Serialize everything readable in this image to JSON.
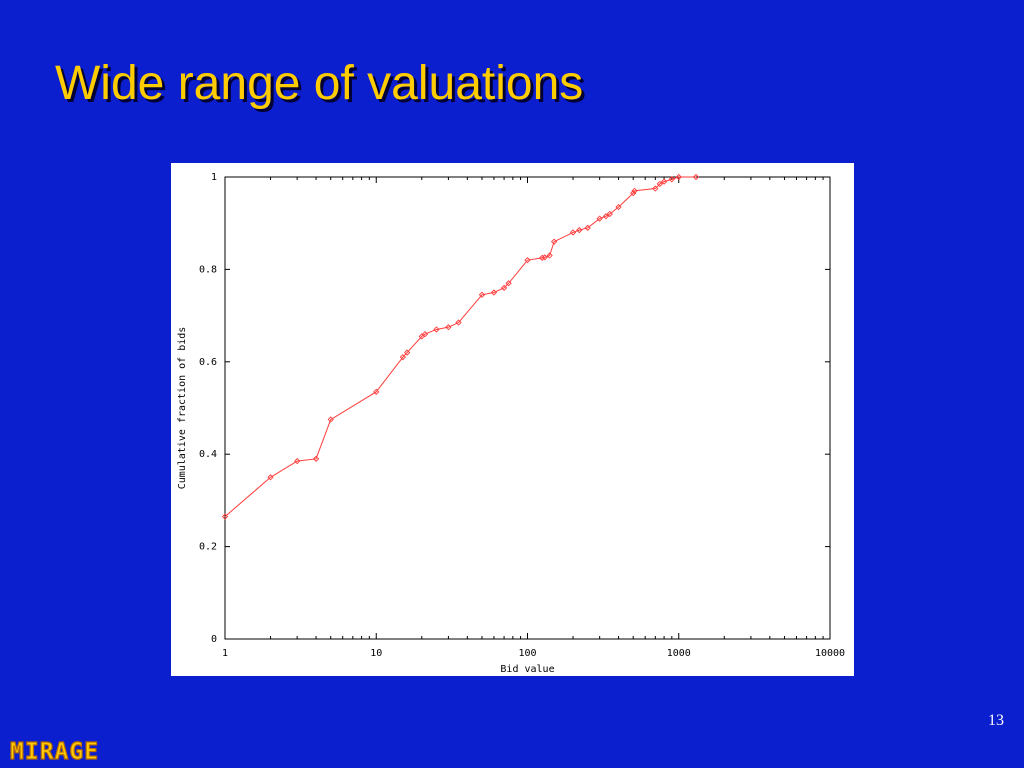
{
  "slide": {
    "title": "Wide range of valuations",
    "page_number": "13",
    "logo_text": "MIRAGE"
  },
  "colors": {
    "background": "#0b1fcf",
    "title": "#ffcc00",
    "series": "#ff3b3b"
  },
  "chart_data": {
    "type": "line",
    "xscale": "log",
    "xlim": [
      1,
      10000
    ],
    "ylim": [
      0,
      1
    ],
    "xlabel": "Bid value",
    "ylabel": "Cumulative fraction of bids",
    "xticks": [
      "1",
      "10",
      "100",
      "1000",
      "10000"
    ],
    "yticks": [
      "0",
      "0.2",
      "0.4",
      "0.6",
      "0.8",
      "1"
    ],
    "xtick_values": [
      1,
      10,
      100,
      1000,
      10000
    ],
    "ytick_values": [
      0,
      0.2,
      0.4,
      0.6,
      0.8,
      1
    ],
    "grid": false,
    "marker": "diamond",
    "series": [
      {
        "x": [
          1,
          2,
          3,
          4,
          5,
          10,
          15,
          16,
          20,
          21,
          25,
          30,
          35,
          50,
          60,
          70,
          75,
          100,
          125,
          130,
          140,
          150,
          200,
          220,
          250,
          300,
          330,
          350,
          400,
          500,
          510,
          700,
          750,
          800,
          900,
          1000,
          1300
        ],
        "y": [
          0.265,
          0.35,
          0.385,
          0.39,
          0.475,
          0.535,
          0.61,
          0.62,
          0.655,
          0.66,
          0.67,
          0.675,
          0.685,
          0.745,
          0.75,
          0.76,
          0.77,
          0.82,
          0.825,
          0.826,
          0.83,
          0.86,
          0.88,
          0.885,
          0.89,
          0.91,
          0.915,
          0.92,
          0.935,
          0.965,
          0.97,
          0.975,
          0.985,
          0.99,
          0.995,
          1.0,
          1.0
        ]
      }
    ]
  }
}
